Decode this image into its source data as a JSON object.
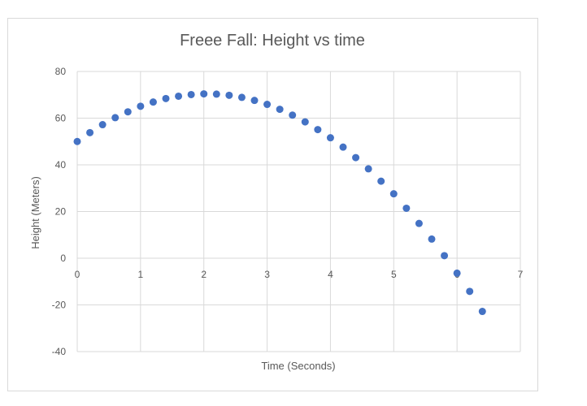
{
  "chart_data": {
    "type": "scatter",
    "title": "Freee Fall: Height vs time",
    "xlabel": "Time (Seconds)",
    "ylabel": "Height (Meters)",
    "xlim": [
      0,
      7
    ],
    "ylim": [
      -40,
      80
    ],
    "x_ticks": [
      "0",
      "1",
      "2",
      "3",
      "4",
      "5",
      "6",
      "7"
    ],
    "y_ticks": [
      "80",
      "60",
      "40",
      "20",
      "0",
      "-20",
      "-40"
    ],
    "grid": true,
    "marker_color": "#4472c4",
    "gridline_color": "#d9d9d9",
    "points": [
      {
        "x": 0.0,
        "y": 50.0
      },
      {
        "x": 0.2,
        "y": 53.8
      },
      {
        "x": 0.4,
        "y": 57.2
      },
      {
        "x": 0.6,
        "y": 60.2
      },
      {
        "x": 0.8,
        "y": 62.7
      },
      {
        "x": 1.0,
        "y": 65.1
      },
      {
        "x": 1.2,
        "y": 66.9
      },
      {
        "x": 1.4,
        "y": 68.4
      },
      {
        "x": 1.6,
        "y": 69.4
      },
      {
        "x": 1.8,
        "y": 70.1
      },
      {
        "x": 2.0,
        "y": 70.4
      },
      {
        "x": 2.2,
        "y": 70.3
      },
      {
        "x": 2.4,
        "y": 69.8
      },
      {
        "x": 2.6,
        "y": 68.9
      },
      {
        "x": 2.8,
        "y": 67.6
      },
      {
        "x": 3.0,
        "y": 65.9
      },
      {
        "x": 3.2,
        "y": 63.8
      },
      {
        "x": 3.4,
        "y": 61.3
      },
      {
        "x": 3.6,
        "y": 58.4
      },
      {
        "x": 3.8,
        "y": 55.1
      },
      {
        "x": 4.0,
        "y": 51.6
      },
      {
        "x": 4.2,
        "y": 47.6
      },
      {
        "x": 4.4,
        "y": 43.1
      },
      {
        "x": 4.6,
        "y": 38.3
      },
      {
        "x": 4.8,
        "y": 33.0
      },
      {
        "x": 5.0,
        "y": 27.6
      },
      {
        "x": 5.2,
        "y": 21.4
      },
      {
        "x": 5.4,
        "y": 14.9
      },
      {
        "x": 5.6,
        "y": 8.2
      },
      {
        "x": 5.8,
        "y": 1.1
      },
      {
        "x": 6.0,
        "y": -6.4
      },
      {
        "x": 6.2,
        "y": -14.2
      },
      {
        "x": 6.4,
        "y": -22.8
      }
    ]
  }
}
